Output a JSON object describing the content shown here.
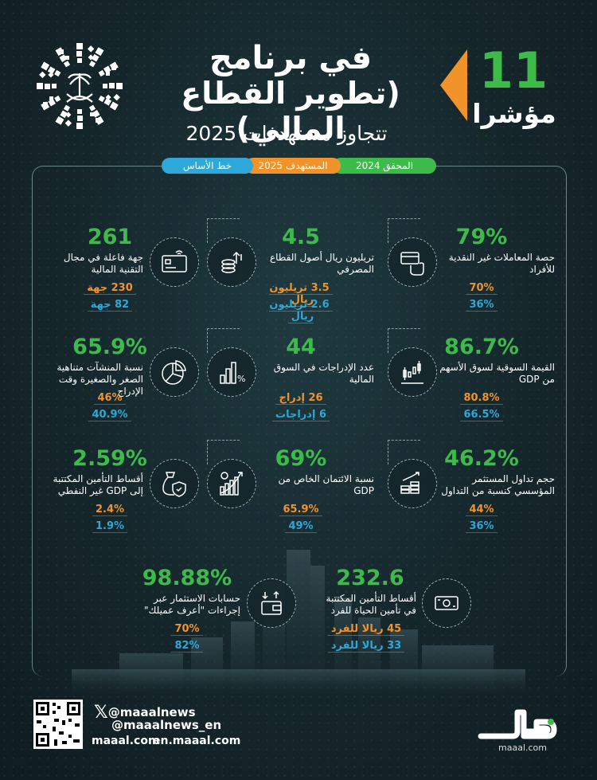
{
  "header": {
    "title_line1": "في برنامج",
    "title_line2": "(تطوير القطاع المالي)",
    "subtitle": "تتجاوز مستهدفات 2025",
    "big_number": "11",
    "big_label": "مؤشرا"
  },
  "legend": {
    "achieved": "المحقق 2024",
    "target": "المستهدف 2025",
    "baseline": "خط الأساس"
  },
  "colors": {
    "achieved": "#3dbb4a",
    "target": "#f0932b",
    "baseline": "#2da8d8"
  },
  "cards": [
    {
      "icon": "card-hand-icon",
      "value": "79%",
      "label": "حصة المعاملات غير النقدية للأفراد",
      "target": "70%",
      "base": "36%"
    },
    {
      "icon": "coins-growth-icon",
      "value": "4.5",
      "label": "تريليون ريال أصول القطاع المصرفي",
      "target": "3.5 تريليون ريال",
      "base": "2.6 تريليون ريال"
    },
    {
      "icon": "credit-card-icon",
      "value": "261",
      "label": "جهة فاعلة في مجال التقنية المالية",
      "target": "230 جهة",
      "base": "82 جهة"
    },
    {
      "icon": "candlestick-icon",
      "value": "86.7%",
      "label": "القيمة السوقية لسوق الأسهم من GDP",
      "target": "80.8%",
      "base": "66.5%"
    },
    {
      "icon": "bar-percent-icon",
      "value": "44",
      "label": "عدد الإدراجات في السوق المالية",
      "target": "26 إدراج",
      "base": "6 إدراجات"
    },
    {
      "icon": "pie-chart-icon",
      "value": "65.9%",
      "label": "نسبة المنشآت متناهية الصغر والصغيرة وقت الإدراج",
      "target": "46%",
      "base": "40.9%"
    },
    {
      "icon": "coin-stacks-icon",
      "value": "46.2%",
      "label": "حجم تداول المستثمر المؤسسي كنسبة من التداول",
      "target": "44%",
      "base": "36%"
    },
    {
      "icon": "growth-chart-icon",
      "value": "69%",
      "label": "نسبة الائتمان الخاص من GDP",
      "target": "65.9%",
      "base": "49%"
    },
    {
      "icon": "money-bag-shield-icon",
      "value": "2.59%",
      "label": "أقساط التأمين المكتتبة إلى GDP غير النفطي",
      "target": "2.4%",
      "base": "1.9%"
    },
    {
      "icon": "banknote-hand-icon",
      "value": "232.6",
      "label": "أقساط التأمين المكتتبة في تأمين الحياة للفرد",
      "target": "45 ريالا للفرد",
      "base": "33 ريالا للفرد"
    },
    {
      "icon": "wallet-arrows-icon",
      "value": "98.88%",
      "label": "حسابات الاستثمار عبر إجراءات \"أعرف عميلك\"",
      "target": "70%",
      "base": "82%"
    }
  ],
  "footer": {
    "x_handle_1": "@maaalnews",
    "x_handle_2": "@maaalnews_en",
    "site_ar": "maaal.com",
    "site_en": "en.maaal.com",
    "logo_text": "مال",
    "logo_sub": "maaal.com"
  }
}
